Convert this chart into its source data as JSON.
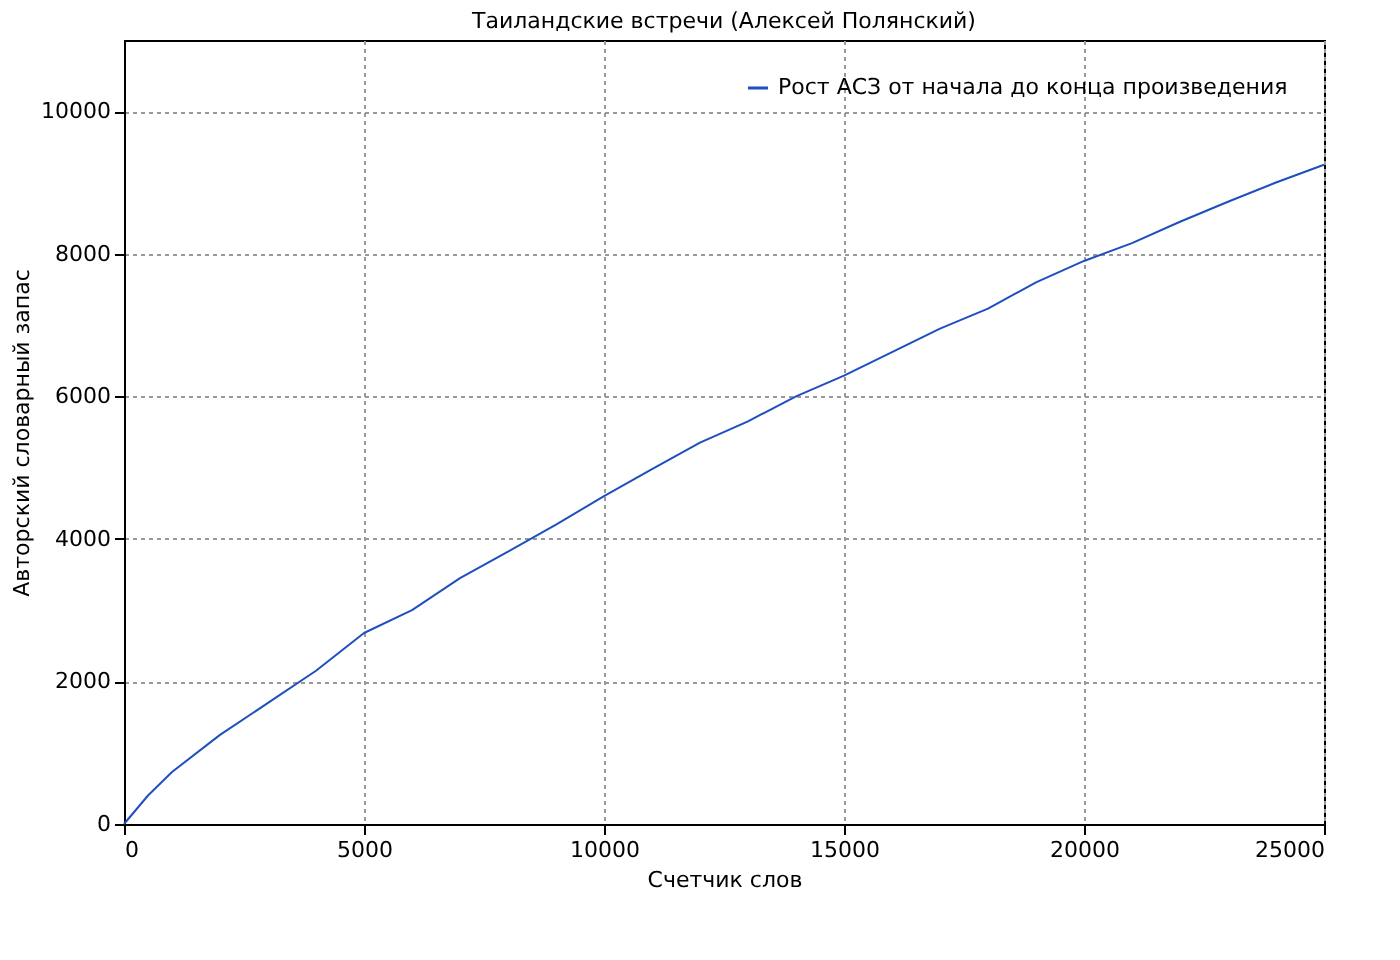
{
  "chart_data": {
    "type": "line",
    "title": "Таиландские встречи (Алексей Полянский)",
    "xlabel": "Счетчик слов",
    "ylabel": "Авторский словарный запас",
    "x": [
      0,
      500,
      1000,
      2000,
      3000,
      4000,
      5000,
      6000,
      7000,
      8000,
      9000,
      10000,
      11000,
      12000,
      13000,
      14000,
      15000,
      16000,
      17000,
      18000,
      19000,
      20000,
      21000,
      22000,
      23000,
      24000,
      25000
    ],
    "series": [
      {
        "name": "Рост АСЗ от начала до конца произведения",
        "color": "#1f4fbf",
        "values": [
          0,
          400,
          730,
          1250,
          1700,
          2150,
          2680,
          3000,
          3450,
          3820,
          4200,
          4600,
          4980,
          5350,
          5650,
          6000,
          6290,
          6620,
          6950,
          7230,
          7600,
          7900,
          8150,
          8450,
          8730,
          9000,
          9250
        ]
      }
    ],
    "xlim": [
      0,
      25000
    ],
    "xticks": [
      0,
      5000,
      10000,
      15000,
      20000,
      25000
    ],
    "ylim": [
      0,
      11000
    ],
    "yticks": [
      0,
      2000,
      4000,
      6000,
      8000,
      10000
    ],
    "grid": true,
    "legend": "top right",
    "marker": "none",
    "line_style": "solid"
  }
}
